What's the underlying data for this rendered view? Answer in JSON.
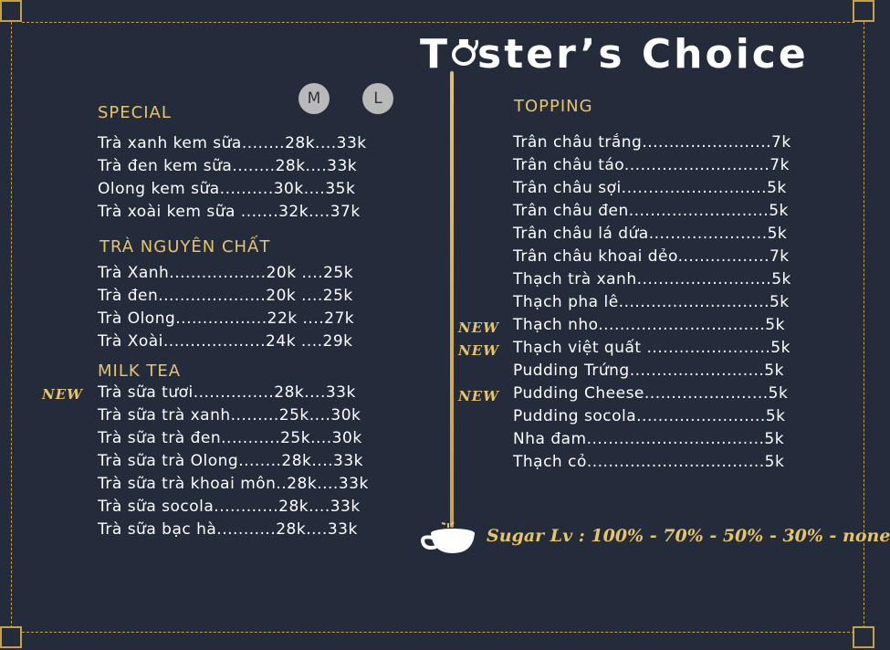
{
  "title": "Taster's Choice",
  "title_parts": {
    "left": "T",
    "right": "ster’s Choice"
  },
  "sizes": {
    "m": "M",
    "l": "L"
  },
  "new_label": "NEW",
  "sugar_levels": "Sugar Lv : 100% - 70% - 50% - 30% - none",
  "colors": {
    "background": "#242c3c",
    "accent": "#e6c46a",
    "text": "#ffffff",
    "badge": "#b9b9b9"
  },
  "sections": {
    "special": {
      "heading": "SPECIAL",
      "items": [
        "Trà xanh kem sữa........28k....33k",
        "Trà đen kem sữa........28k....33k",
        "Olong kem sữa..........30k....35k",
        "Trà xoài kem sữa .......32k....37k"
      ]
    },
    "pure_tea": {
      "heading": "TRÀ NGUYÊN CHẤT",
      "items": [
        "Trà Xanh..................20k ....25k",
        "Trà đen....................20k ....25k",
        "Trà Olong.................22k ....27k",
        "Trà Xoài...................24k ....29k"
      ]
    },
    "milk_tea": {
      "heading": "MILK TEA",
      "items": [
        "Trà sữa tươi...............28k....33k",
        "Trà sữa trà xanh.........25k....30k",
        "Trà sữa trà đen...........25k....30k",
        "Trà sữa trà Olong........28k....33k",
        "Trà sữa trà khoai môn..28k....33k",
        "Trà sữa socola............28k....33k",
        "Trà sữa bạc hà...........28k....33k"
      ]
    },
    "topping": {
      "heading": "TOPPING",
      "items": [
        "Trân châu trắng........................7k",
        "Trân châu táo...........................7k",
        "Trân châu sợi...........................5k",
        "Trân châu đen..........................5k",
        "Trân châu lá dứa......................5k",
        "Trân châu khoai dẻo.................7k",
        "Thạch trà xanh.........................5k",
        "Thạch pha lê............................5k",
        "Thạch nho...............................5k",
        "Thạch việt quất .......................5k",
        "Pudding Trứng.........................5k",
        "Pudding Cheese.......................5k",
        "Pudding socola........................5k",
        "Nha đam.................................5k",
        "Thạch cỏ.................................5k"
      ]
    }
  }
}
